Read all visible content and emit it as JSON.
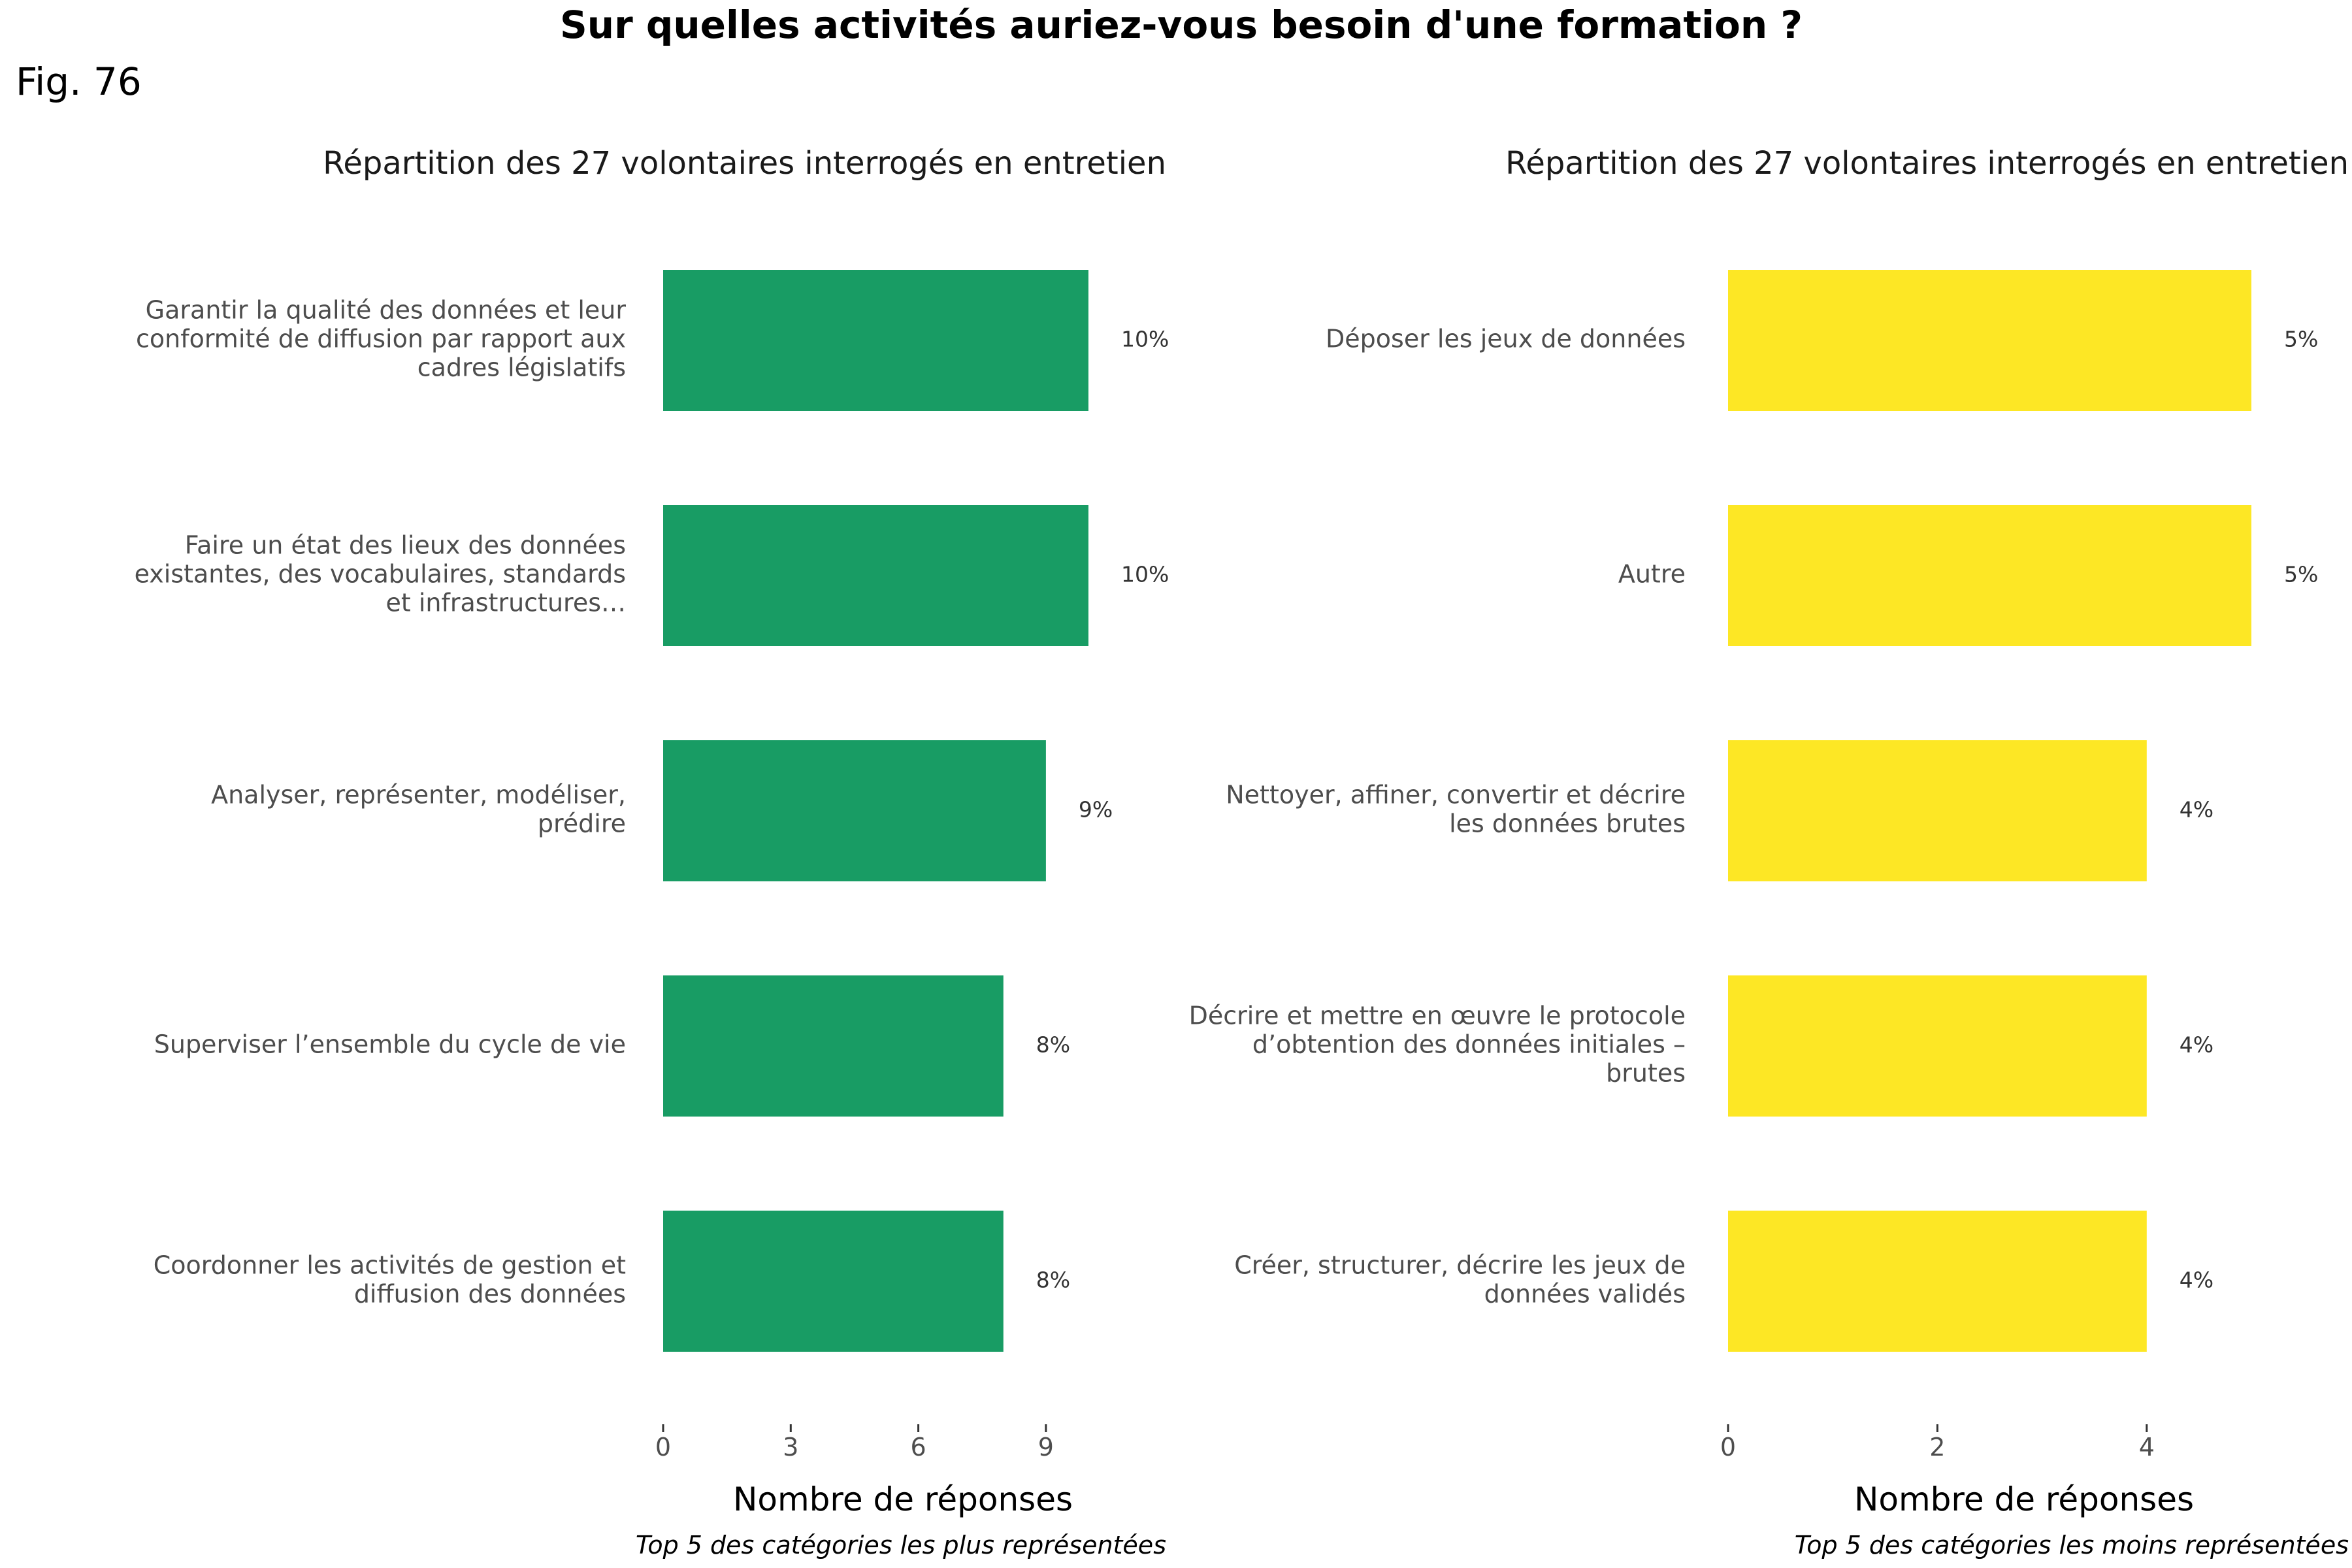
{
  "title": "Sur quelles activités auriez-vous besoin d'une formation ?",
  "figure_label": "Fig. 76",
  "chart_data": [
    {
      "type": "bar",
      "orientation": "horizontal",
      "subtitle": "Répartition des 27 volontaires interrogés en entretien",
      "xlabel": "Nombre de réponses",
      "caption": "Top 5 des catégories les plus représentées",
      "color": "#189c64",
      "xticks": [
        0,
        3,
        6,
        9
      ],
      "xlim": [
        0,
        10
      ],
      "categories": [
        "Garantir la qualité des données et leur conformité de diffusion par rapport aux cadres législatifs",
        "Faire un état des lieux des données existantes, des vocabulaires, standards et infrastructures…",
        "Analyser, représenter, modéliser, prédire",
        "Superviser l’ensemble du cycle de vie",
        "Coordonner les activités de gestion et diffusion des données"
      ],
      "category_lines": [
        [
          "Garantir la qualité des données et leur",
          "conformité de diffusion par rapport aux",
          "cadres législatifs"
        ],
        [
          "Faire un état des lieux des données",
          "existantes, des vocabulaires, standards",
          "et infrastructures…"
        ],
        [
          "Analyser, représenter, modéliser,",
          "prédire"
        ],
        [
          "Superviser l’ensemble du cycle de vie"
        ],
        [
          "Coordonner les activités de gestion et",
          "diffusion des données"
        ]
      ],
      "values": [
        10,
        10,
        9,
        8,
        8
      ],
      "percent_labels": [
        "10%",
        "10%",
        "9%",
        "8%",
        "8%"
      ]
    },
    {
      "type": "bar",
      "orientation": "horizontal",
      "subtitle": "Répartition des 27 volontaires interrogés en entretien",
      "xlabel": "Nombre de réponses",
      "caption": "Top 5 des catégories les moins représentées",
      "color": "#fde725",
      "xticks": [
        0,
        2,
        4
      ],
      "xlim": [
        0,
        5
      ],
      "categories": [
        "Déposer les jeux de données",
        "Autre",
        "Nettoyer, affiner, convertir et décrire les données brutes",
        "Décrire et mettre en œuvre le protocole d’obtention des données initiales – brutes",
        "Créer, structurer, décrire les jeux de données validés"
      ],
      "category_lines": [
        [
          "Déposer les jeux de données"
        ],
        [
          "Autre"
        ],
        [
          "Nettoyer, affiner, convertir et décrire",
          "les données brutes"
        ],
        [
          "Décrire et mettre en œuvre le protocole",
          "d’obtention des données initiales –",
          "brutes"
        ],
        [
          "Créer, structurer, décrire les jeux de",
          "données validés"
        ]
      ],
      "values": [
        5,
        5,
        4,
        4,
        4
      ],
      "percent_labels": [
        "5%",
        "5%",
        "4%",
        "4%",
        "4%"
      ]
    }
  ]
}
